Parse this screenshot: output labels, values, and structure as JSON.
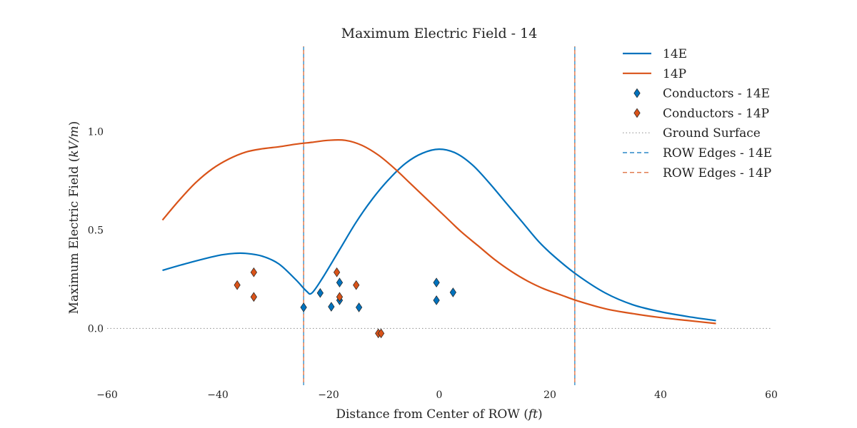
{
  "chart_data": {
    "type": "line",
    "title": "Maximum Electric Field - 14",
    "xlabel": "Distance from Center of ROW (ft)",
    "ylabel": "Maximum Electric Field (kV/m)",
    "xlim": [
      -60,
      60
    ],
    "ylim": [
      -0.27,
      1.45
    ],
    "xticks": [
      -60,
      -40,
      -20,
      0,
      20,
      40,
      60
    ],
    "xtick_labels": [
      "−60",
      "−40",
      "−20",
      "0",
      "20",
      "40",
      "60"
    ],
    "yticks": [
      0.0,
      0.5,
      1.0
    ],
    "ytick_labels": [
      "0.0",
      "0.5",
      "1.0"
    ],
    "grid": false,
    "legend_position": "top-right",
    "series": [
      {
        "name": "14E",
        "kind": "line",
        "color": "#0072bd",
        "x": [
          -50,
          -45,
          -40,
          -37,
          -35,
          -32,
          -29,
          -26,
          -24,
          -23,
          -21,
          -18,
          -15,
          -12,
          -9,
          -6,
          -3,
          0,
          3,
          6,
          9,
          12,
          15,
          18,
          21,
          25,
          30,
          35,
          40,
          45,
          50
        ],
        "y": [
          0.295,
          0.335,
          0.37,
          0.381,
          0.381,
          0.367,
          0.328,
          0.25,
          0.19,
          0.18,
          0.26,
          0.4,
          0.54,
          0.66,
          0.76,
          0.84,
          0.89,
          0.91,
          0.89,
          0.83,
          0.74,
          0.64,
          0.54,
          0.44,
          0.36,
          0.27,
          0.18,
          0.12,
          0.085,
          0.06,
          0.04
        ]
      },
      {
        "name": "14P",
        "kind": "line",
        "color": "#d95319",
        "x": [
          -50,
          -47,
          -44,
          -41,
          -38,
          -35,
          -32,
          -29,
          -26,
          -23,
          -20,
          -17,
          -14,
          -11,
          -8,
          -5,
          -2,
          1,
          4,
          7,
          10,
          13,
          16,
          19,
          22,
          25,
          30,
          35,
          40,
          45,
          50
        ],
        "y": [
          0.55,
          0.65,
          0.74,
          0.81,
          0.86,
          0.895,
          0.912,
          0.922,
          0.935,
          0.945,
          0.955,
          0.955,
          0.93,
          0.88,
          0.81,
          0.73,
          0.65,
          0.57,
          0.49,
          0.42,
          0.35,
          0.29,
          0.24,
          0.2,
          0.17,
          0.14,
          0.1,
          0.075,
          0.055,
          0.04,
          0.025
        ]
      },
      {
        "name": "Conductors - 14E",
        "kind": "marker",
        "color": "#0072bd",
        "x": [
          -24.5,
          -21.5,
          -19.5,
          -18,
          -18,
          -14.5,
          -0.5,
          -0.5,
          2.5
        ],
        "y": [
          0.107,
          0.18,
          0.11,
          0.143,
          0.233,
          0.107,
          0.233,
          0.143,
          0.183
        ]
      },
      {
        "name": "Conductors - 14P",
        "kind": "marker",
        "color": "#d95319",
        "x": [
          -36.5,
          -33.5,
          -33.5,
          -18.5,
          -18,
          -15,
          -11,
          -10.5
        ],
        "y": [
          0.22,
          0.285,
          0.16,
          0.285,
          0.16,
          0.22,
          -0.025,
          -0.025
        ]
      },
      {
        "name": "Ground Surface",
        "kind": "hline",
        "color": "#999999",
        "y": 0.0
      },
      {
        "name": "ROW Edges - 14E",
        "kind": "vlines",
        "color": "#0072bd",
        "x": [
          -24.5,
          24.5
        ]
      },
      {
        "name": "ROW Edges - 14P",
        "kind": "vlines",
        "color": "#d95319",
        "x": [
          -24.5,
          24.5
        ]
      }
    ]
  }
}
